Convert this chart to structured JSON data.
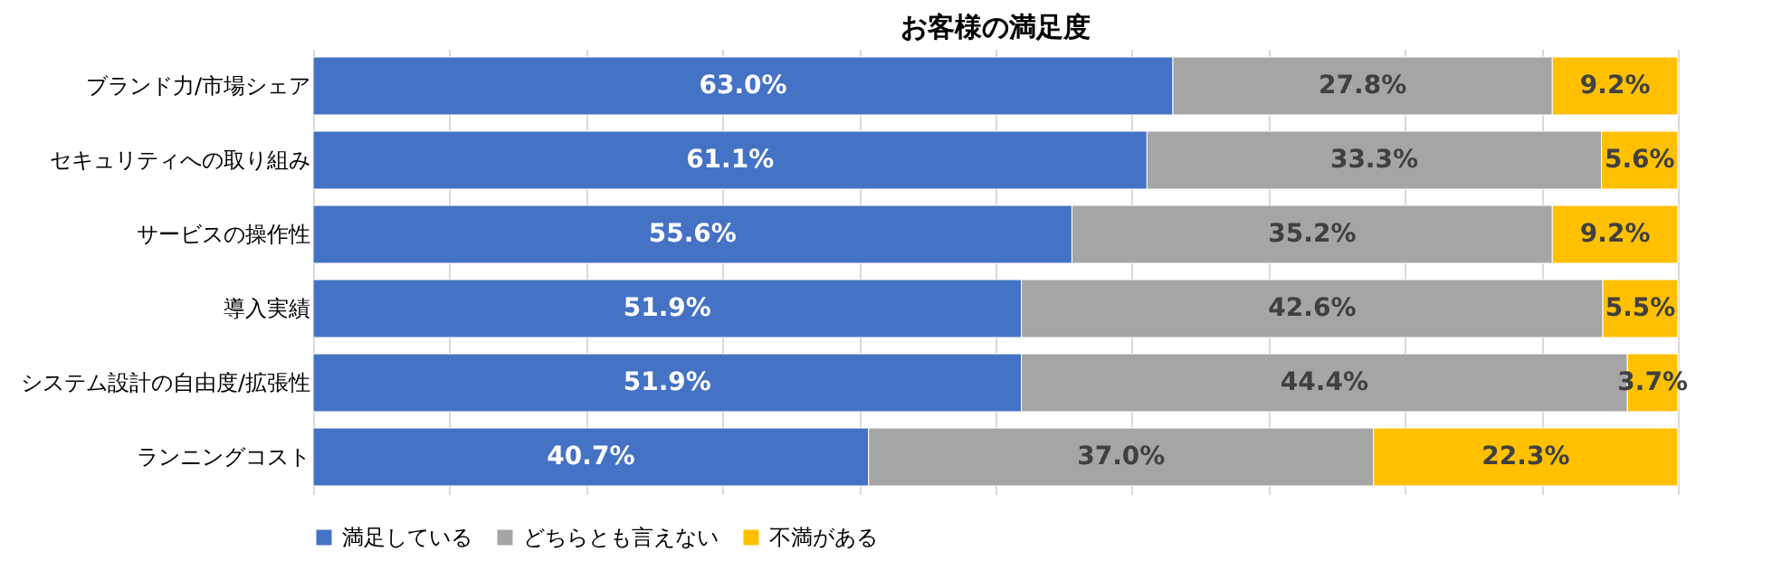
{
  "chart_data": {
    "type": "bar",
    "orientation": "horizontal",
    "stacked": true,
    "title": "お客様の満足度",
    "categories": [
      "ブランド力/市場シェア",
      "セキュリティへの取り組み",
      "サービスの操作性",
      "導入実績",
      "システム設計の自由度/拡張性",
      "ランニングコスト"
    ],
    "series": [
      {
        "name": "満足している",
        "color": "#4472c4",
        "values": [
          63.0,
          61.1,
          55.6,
          51.9,
          51.9,
          40.7
        ],
        "value_labels": [
          "63.0%",
          "61.1%",
          "55.6%",
          "51.9%",
          "51.9%",
          "40.7%"
        ]
      },
      {
        "name": "どちらとも言えない",
        "color": "#a5a5a5",
        "values": [
          27.8,
          33.3,
          35.2,
          42.6,
          44.4,
          37.0
        ],
        "value_labels": [
          "27.8%",
          "33.3%",
          "35.2%",
          "42.6%",
          "44.4%",
          "37.0%"
        ]
      },
      {
        "name": "不満がある",
        "color": "#ffc000",
        "values": [
          9.2,
          5.6,
          9.2,
          5.5,
          3.7,
          22.3
        ],
        "value_labels": [
          "9.2%",
          "5.6%",
          "9.2%",
          "5.5%",
          "3.7%",
          "22.3%"
        ]
      }
    ],
    "xlim": [
      0,
      100
    ],
    "xticks": [
      {
        "value": 0,
        "label": null
      },
      {
        "value": 10,
        "label": null
      },
      {
        "value": 20,
        "label": null
      },
      {
        "value": 30,
        "label": null
      },
      {
        "value": 40,
        "label": null
      },
      {
        "value": 50,
        "label": null
      },
      {
        "value": 60,
        "label": null
      },
      {
        "value": 70,
        "label": null
      },
      {
        "value": 80,
        "label": null
      },
      {
        "value": 90,
        "label": null
      },
      {
        "value": 100,
        "label": null
      }
    ],
    "grid": "x",
    "legend": "bottom",
    "tick_labels": "y"
  }
}
